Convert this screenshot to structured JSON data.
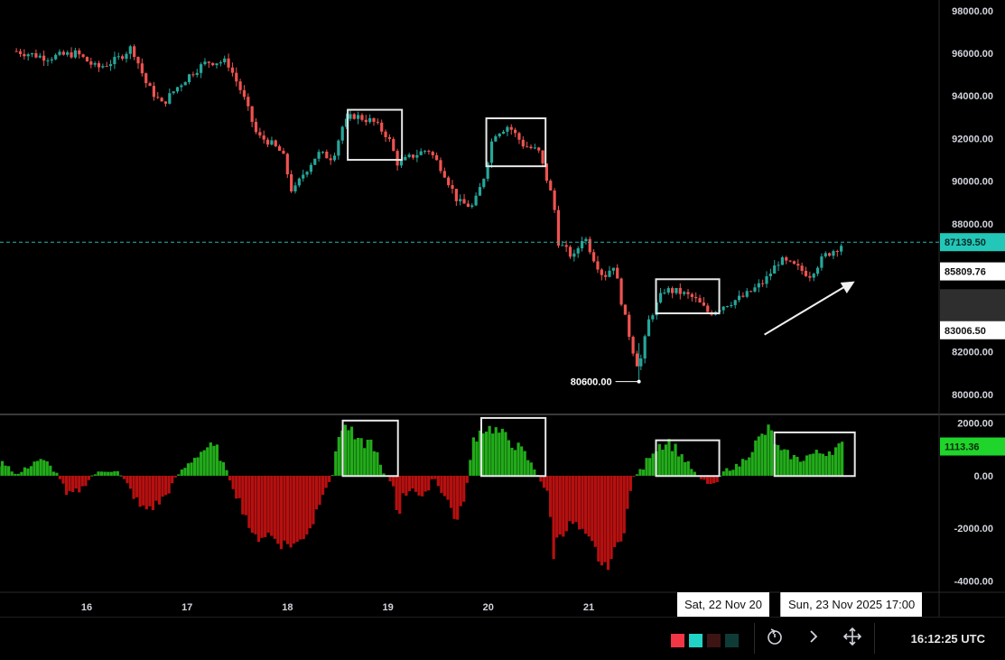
{
  "chart_data": [
    {
      "type": "candlestick",
      "x_tick_labels": [
        "16",
        "17",
        "18",
        "19",
        "20",
        "21"
      ],
      "y_ticks": [
        80000,
        82000,
        84000,
        86000,
        88000,
        90000,
        92000,
        94000,
        96000,
        98000
      ],
      "y_tick_labels": [
        "80000.00",
        "82000.00",
        "84000.00",
        "86000.00",
        "88000.00",
        "90000.00",
        "92000.00",
        "94000.00",
        "96000.00",
        "98000.00"
      ],
      "ylim": [
        79100,
        98500
      ],
      "last_price": 87139.5,
      "last_price_label": "87139.50",
      "marker_prices": [
        85809.76,
        83006.5
      ],
      "marker_price_labels": [
        "85809.76",
        "83006.50"
      ],
      "low_annotation": {
        "value": 80600,
        "label": "80600.00"
      },
      "up_color": "#26a69a",
      "down_color": "#ef5350",
      "path_x": [
        15.3,
        15.6,
        15.9,
        16.1,
        16.3,
        16.45,
        16.6,
        16.75,
        16.9,
        17.05,
        17.2,
        17.4,
        17.55,
        17.7,
        17.8,
        17.95,
        18.05,
        18.15,
        18.3,
        18.45,
        18.55,
        18.65,
        18.85,
        19.0,
        19.1,
        19.25,
        19.4,
        19.55,
        19.7,
        19.85,
        19.95,
        20.05,
        20.2,
        20.35,
        20.5,
        20.65,
        20.7,
        20.85,
        20.95,
        21.05,
        21.15,
        21.25,
        21.35,
        21.45,
        21.5,
        21.6,
        21.75,
        21.9,
        22.05,
        22.2,
        22.35,
        22.55,
        22.75,
        22.9,
        23.05,
        23.2,
        23.35,
        23.45,
        23.55
      ],
      "path_y": [
        96100,
        95800,
        96000,
        95300,
        95700,
        96300,
        94500,
        93600,
        94400,
        95100,
        95600,
        95600,
        94100,
        92100,
        91900,
        91300,
        89400,
        90300,
        91300,
        91100,
        92600,
        93100,
        92800,
        92100,
        90800,
        91200,
        91500,
        90500,
        89000,
        88800,
        90100,
        92200,
        92600,
        91700,
        91400,
        89000,
        87100,
        86400,
        87500,
        86400,
        85500,
        86100,
        83800,
        81900,
        81200,
        83500,
        84900,
        84800,
        84500,
        83800,
        84200,
        84600,
        85300,
        86300,
        86000,
        85600,
        86500,
        86800,
        87140
      ]
    },
    {
      "type": "histogram",
      "y_ticks": [
        -4000,
        -2000,
        0,
        2000
      ],
      "y_tick_labels": [
        "-4000.00",
        "-2000.00",
        "0.00",
        "2000.00"
      ],
      "ylim": [
        -4400,
        2300
      ],
      "last_value": 1113.36,
      "last_value_label": "1113.36",
      "positive_color": "#22ab1a",
      "negative_color": "#b71010",
      "path_x": [
        15.0,
        15.2,
        15.3,
        15.5,
        15.6,
        15.7,
        15.75,
        15.8,
        15.95,
        16.05,
        16.1,
        16.2,
        16.3,
        16.4,
        16.55,
        16.7,
        16.8,
        16.9,
        17.0,
        17.1,
        17.2,
        17.3,
        17.4,
        17.5,
        17.6,
        17.65,
        17.8,
        17.95,
        18.1,
        18.25,
        18.35,
        18.45,
        18.5,
        18.6,
        18.7,
        18.85,
        18.95,
        19.05,
        19.1,
        19.15,
        19.25,
        19.35,
        19.45,
        19.6,
        19.7,
        19.8,
        19.85,
        19.95,
        20.05,
        20.2,
        20.35,
        20.5,
        20.6,
        20.65,
        20.7,
        20.85,
        20.95,
        21.05,
        21.15,
        21.25,
        21.35,
        21.45,
        21.55,
        21.6,
        21.7,
        21.8,
        21.9,
        22.0,
        22.1,
        22.15,
        22.25,
        22.35,
        22.5,
        22.6,
        22.7,
        22.8,
        22.9,
        23.0,
        23.1,
        23.2,
        23.35,
        23.5,
        23.55
      ],
      "path_y": [
        400,
        500,
        0,
        600,
        500,
        100,
        -200,
        -800,
        -500,
        0,
        100,
        200,
        200,
        -300,
        -1300,
        -1100,
        -700,
        0,
        400,
        800,
        1100,
        1000,
        100,
        -800,
        -1600,
        -2400,
        -2200,
        -2600,
        -2600,
        -1800,
        -600,
        0,
        1600,
        1900,
        1200,
        1300,
        100,
        -300,
        -1500,
        -800,
        -400,
        -1000,
        0,
        -1000,
        -1800,
        -100,
        1400,
        1800,
        1800,
        1400,
        900,
        0,
        -800,
        -3000,
        -2200,
        -1800,
        -2300,
        -2700,
        -3600,
        -3000,
        -2000,
        0,
        300,
        800,
        1200,
        1300,
        900,
        400,
        -100,
        -200,
        -400,
        200,
        400,
        900,
        1400,
        1800,
        900,
        800,
        600,
        800,
        900,
        1100,
        1113
      ]
    }
  ],
  "annotation_boxes": [
    {
      "pane": "price",
      "x": [
        18.6,
        19.14
      ],
      "y": [
        91000,
        93350
      ]
    },
    {
      "pane": "price",
      "x": [
        19.98,
        20.57
      ],
      "y": [
        90700,
        92950
      ]
    },
    {
      "pane": "price",
      "x": [
        21.67,
        22.3
      ],
      "y": [
        83800,
        85400
      ]
    },
    {
      "pane": "volume",
      "x": [
        18.55,
        19.1
      ],
      "y": [
        -10,
        2100
      ]
    },
    {
      "pane": "volume",
      "x": [
        19.93,
        20.57
      ],
      "y": [
        -10,
        2200
      ]
    },
    {
      "pane": "volume",
      "x": [
        21.67,
        22.3
      ],
      "y": [
        -10,
        1350
      ]
    },
    {
      "pane": "volume",
      "x": [
        22.85,
        23.65
      ],
      "y": [
        -10,
        1650
      ]
    }
  ],
  "trend_arrow": {
    "from": [
      22.75,
      82800
    ],
    "to": [
      23.65,
      85300
    ]
  },
  "time_labels": {
    "crosshair_date": "Sat, 22 Nov 20",
    "crosshair_date_time": "Sun, 23 Nov 2025 17:00"
  },
  "toolbar": {
    "swatches": [
      "#f23645",
      "#22d3c5",
      "#3d1414",
      "#0f3b37"
    ],
    "icons": [
      "replay-icon",
      "chevron-right-icon",
      "move-icon"
    ],
    "clock": "16:12:25 UTC"
  }
}
